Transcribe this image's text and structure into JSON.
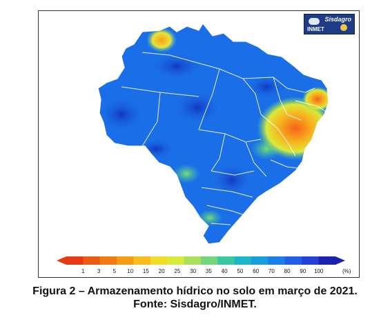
{
  "logo": {
    "name": "Sisdagro",
    "org": "INMET"
  },
  "legend": {
    "ticks": [
      "1",
      "3",
      "5",
      "10",
      "15",
      "20",
      "25",
      "30",
      "35",
      "40",
      "50",
      "60",
      "70",
      "80",
      "90",
      "100"
    ],
    "unit": "(%)",
    "colors": [
      "#e83a14",
      "#ef5a12",
      "#f37a10",
      "#f79b14",
      "#f8bd1a",
      "#f2dc2a",
      "#d8ea3a",
      "#a9e25a",
      "#73d67a",
      "#39c8a0",
      "#1bb6c8",
      "#159ddc",
      "#1a7fe6",
      "#1f5ee8",
      "#2240d8",
      "#1b22b0"
    ]
  },
  "caption": {
    "line1": "Figura 2 – Armazenamento hídrico no solo em março de 2021.",
    "line2": "Fonte: Sisdagro/INMET."
  },
  "map": {
    "base_color": "#1a6fe8",
    "dark_color": "#1240c8",
    "dry_color": "#f07a1a",
    "mid_color": "#f3d33a",
    "green_color": "#4fd68b"
  }
}
